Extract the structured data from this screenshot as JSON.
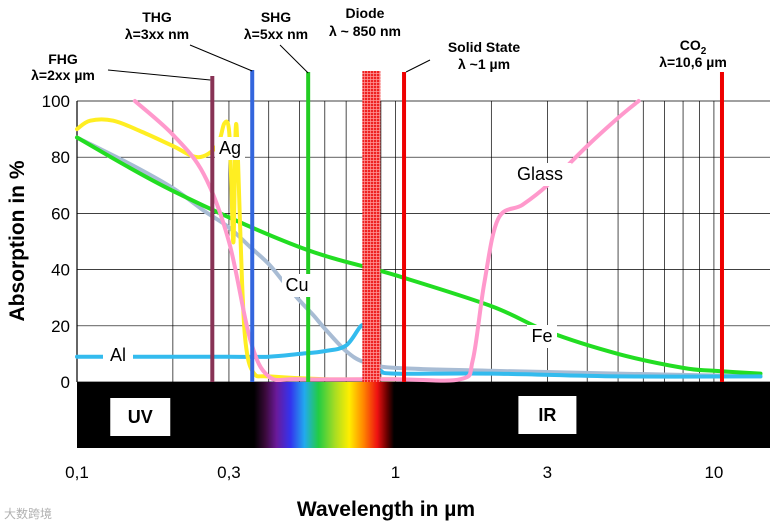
{
  "chart_data": {
    "type": "line",
    "title": "",
    "xlabel": "Wavelength in µm",
    "ylabel": "Absorption in %",
    "xscale": "log",
    "xlim": [
      0.1,
      15
    ],
    "ylim": [
      0,
      100
    ],
    "x_ticks": [
      0.1,
      0.3,
      1,
      3,
      10
    ],
    "x_tick_labels": [
      "0,1",
      "0,3",
      "1",
      "3",
      "10"
    ],
    "y_ticks": [
      0,
      20,
      40,
      60,
      80,
      100
    ],
    "y_tick_labels": [
      "0",
      "20",
      "40",
      "60",
      "80",
      "100"
    ],
    "grid": "log-vertical and horizontal",
    "series": [
      {
        "name": "Ag",
        "label": "Ag",
        "color": "#ffee22",
        "x": [
          0.1,
          0.11,
          0.13,
          0.16,
          0.2,
          0.24,
          0.275,
          0.29,
          0.3,
          0.305,
          0.31,
          0.315,
          0.32,
          0.33,
          0.34,
          0.36,
          0.4,
          0.6,
          1.0
        ],
        "y": [
          90,
          93,
          93,
          89,
          84,
          80,
          84,
          92,
          90,
          72,
          50,
          90,
          80,
          35,
          12,
          3,
          2,
          1,
          1
        ]
      },
      {
        "name": "Cu",
        "label": "Cu",
        "color": "#a8bcd4",
        "x": [
          0.1,
          0.15,
          0.2,
          0.25,
          0.3,
          0.35,
          0.4,
          0.45,
          0.5,
          0.55,
          0.6,
          0.7,
          0.8,
          1.0,
          2.0,
          5.0,
          14.0
        ],
        "y": [
          87,
          77,
          69,
          61,
          55,
          48,
          42,
          35,
          29,
          24,
          19,
          11,
          7,
          5,
          4,
          3,
          2
        ]
      },
      {
        "name": "Fe",
        "label": "Fe",
        "color": "#22dd22",
        "x": [
          0.1,
          0.2,
          0.5,
          1.0,
          2.0,
          3.0,
          5.0,
          8.0,
          10.0,
          14.0
        ],
        "y": [
          87,
          68,
          48,
          38,
          27,
          18,
          10,
          5,
          4,
          3
        ]
      },
      {
        "name": "Al",
        "label": "Al",
        "color": "#33bbee",
        "x": [
          0.1,
          0.2,
          0.3,
          0.4,
          0.5,
          0.6,
          0.7,
          0.78,
          0.8,
          0.83,
          0.86,
          0.9,
          1.0,
          2.0,
          5.0,
          14.0
        ],
        "y": [
          9,
          9,
          9,
          9,
          10,
          11,
          13,
          20,
          18,
          11,
          6,
          4,
          3,
          3,
          2,
          2
        ]
      },
      {
        "name": "Glass",
        "label": "Glass",
        "color": "#ff99cc",
        "x": [
          0.152,
          0.2,
          0.25,
          0.3,
          0.35,
          0.4,
          0.5,
          1.0,
          1.6,
          1.75,
          1.9,
          2.1,
          2.5,
          3.0,
          4.0,
          5.0,
          5.8
        ],
        "y": [
          100,
          88,
          74,
          50,
          15,
          2,
          1,
          1,
          1,
          8,
          35,
          58,
          63,
          70,
          84,
          94,
          100
        ]
      }
    ],
    "lasers": [
      {
        "name": "FHG",
        "label_line1": "FHG",
        "label_line2": "λ=2xx µm",
        "x": 0.266,
        "color": "#883355"
      },
      {
        "name": "THG",
        "label_line1": "THG",
        "label_line2": "λ=3xx nm",
        "x": 0.355,
        "color": "#3366dd"
      },
      {
        "name": "SHG",
        "label_line1": "SHG",
        "label_line2": "λ=5xx nm",
        "x": 0.532,
        "color": "#22cc22"
      },
      {
        "name": "Diode",
        "label_line1": "Diode",
        "label_line2": "λ ~ 850 nm",
        "x": 0.84,
        "color": "#ee2222"
      },
      {
        "name": "Solid State",
        "label_line1": "Solid State",
        "label_line2": "λ ~1 µm",
        "x": 1.064,
        "color": "#ee0000"
      },
      {
        "name": "CO2",
        "label_line1": "CO2",
        "label_line2": "λ=10,6 µm",
        "x": 10.6,
        "color": "#ee0000"
      }
    ],
    "bands": [
      {
        "name": "UV",
        "label": "UV"
      },
      {
        "name": "IR",
        "label": "IR"
      }
    ]
  },
  "watermark": "大数跨境"
}
